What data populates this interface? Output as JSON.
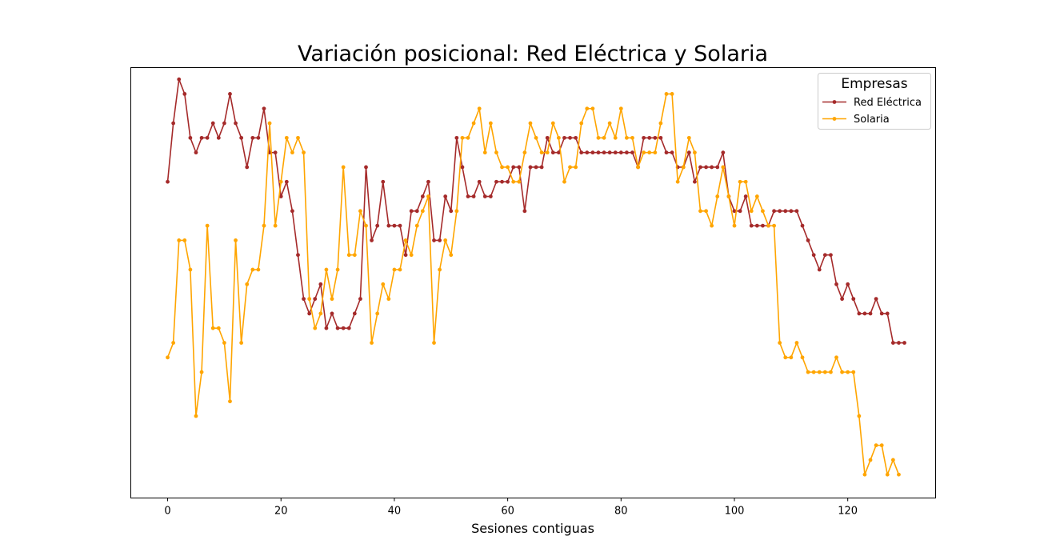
{
  "chart_data": {
    "type": "line",
    "title": "Variación posicional: Red Eléctrica y Solaria",
    "xlabel": "Sesiones contiguas",
    "ylabel": "",
    "xlim": [
      -6.5,
      135.5
    ],
    "ylim": [
      -0.6,
      28.8
    ],
    "xticks": [
      0,
      20,
      40,
      60,
      80,
      100,
      120
    ],
    "grid": false,
    "legend": {
      "title": "Empresas",
      "placement": "top-right"
    },
    "series": [
      {
        "name": "Red Eléctrica",
        "color": "#a52a2a",
        "values": [
          21,
          25,
          28,
          27,
          24,
          23,
          24,
          24,
          25,
          24,
          25,
          27,
          25,
          24,
          22,
          24,
          24,
          26,
          23,
          23,
          20,
          21,
          19,
          16,
          13,
          12,
          13,
          14,
          11,
          12,
          11,
          11,
          11,
          12,
          13,
          22,
          17,
          18,
          21,
          18,
          18,
          18,
          16,
          19,
          19,
          20,
          21,
          17,
          17,
          20,
          19,
          24,
          22,
          20,
          20,
          21,
          20,
          20,
          21,
          21,
          21,
          22,
          22,
          19,
          22,
          22,
          22,
          24,
          23,
          23,
          24,
          24,
          24,
          23,
          23,
          23,
          23,
          23,
          23,
          23,
          23,
          23,
          23,
          22,
          24,
          24,
          24,
          24,
          23,
          23,
          22,
          22,
          23,
          21,
          22,
          22,
          22,
          22,
          23,
          20,
          19,
          19,
          20,
          18,
          18,
          18,
          18,
          19,
          19,
          19,
          19,
          19,
          18,
          17,
          16,
          15,
          16,
          16,
          14,
          13,
          14,
          13,
          12,
          12,
          12,
          13,
          12,
          12,
          10,
          10,
          10
        ]
      },
      {
        "name": "Solaria",
        "color": "#ffa500",
        "values": [
          9,
          10,
          17,
          17,
          15,
          5,
          8,
          18,
          11,
          11,
          10,
          6,
          17,
          10,
          14,
          15,
          15,
          18,
          25,
          18,
          21,
          24,
          23,
          24,
          23,
          13,
          11,
          12,
          15,
          13,
          15,
          22,
          16,
          16,
          19,
          18,
          10,
          12,
          14,
          13,
          15,
          15,
          17,
          16,
          18,
          19,
          20,
          10,
          15,
          17,
          16,
          19,
          24,
          24,
          25,
          26,
          23,
          25,
          23,
          22,
          22,
          21,
          21,
          23,
          25,
          24,
          23,
          23,
          25,
          24,
          21,
          22,
          22,
          25,
          26,
          26,
          24,
          24,
          25,
          24,
          26,
          24,
          24,
          22,
          23,
          23,
          23,
          25,
          27,
          27,
          21,
          22,
          24,
          23,
          19,
          19,
          18,
          20,
          22,
          20,
          18,
          21,
          21,
          19,
          20,
          19,
          18,
          18,
          10,
          9,
          9,
          10,
          9,
          8,
          8,
          8,
          8,
          8,
          9,
          8,
          8,
          8,
          5,
          1,
          2,
          3,
          3,
          1,
          2,
          1
        ]
      }
    ]
  }
}
